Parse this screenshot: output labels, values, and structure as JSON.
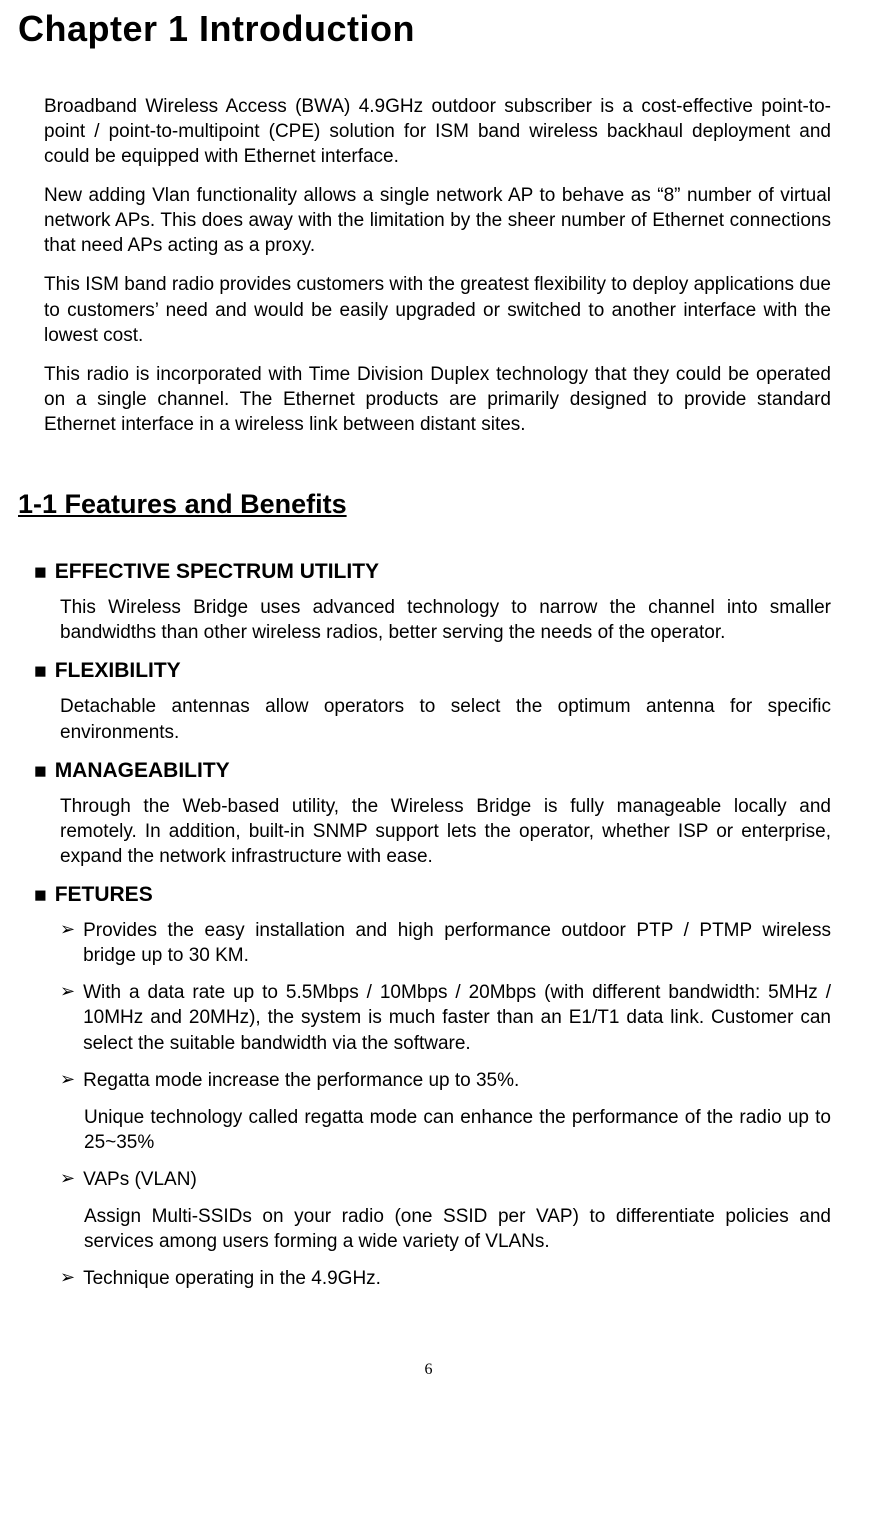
{
  "colors": {
    "text": "#000000",
    "background": "#ffffff"
  },
  "chapter_title": "Chapter 1    Introduction",
  "intro_paragraphs": [
    "Broadband Wireless Access (BWA) 4.9GHz outdoor subscriber is a cost-effective point-to-point / point-to-multipoint (CPE) solution for ISM band wireless backhaul deployment and could be equipped with Ethernet interface.",
    "New adding Vlan functionality allows a single network AP to behave as “8” number of virtual network APs. This does away with the limitation by the sheer number of Ethernet connections that need APs acting as a proxy.",
    "This ISM band radio provides customers with the greatest flexibility to deploy applications due to customers’ need and would be easily upgraded or switched to another interface with the lowest cost.",
    "This radio is incorporated with Time Division Duplex technology that they could be operated on a single channel. The Ethernet products are primarily designed to provide standard Ethernet interface in a wireless link between distant sites."
  ],
  "section_header": "1-1 Features and Benefits",
  "features": [
    {
      "title": "EFFECTIVE SPECTRUM UTILITY",
      "body": "This Wireless Bridge uses advanced technology to narrow the channel into smaller bandwidths than other wireless radios, better serving the needs of the operator."
    },
    {
      "title": "FLEXIBILITY",
      "body": "Detachable antennas allow operators to select the optimum antenna for specific environments."
    },
    {
      "title": "MANAGEABILITY",
      "body": "Through the Web-based utility, the Wireless Bridge is fully manageable locally and remotely. In addition, built-in SNMP support lets the operator, whether ISP or enterprise, expand the network infrastructure with ease."
    },
    {
      "title": "FETURES",
      "items": [
        {
          "text": "Provides the easy installation and high performance outdoor PTP / PTMP wireless bridge up to 30 KM."
        },
        {
          "text": "With a data rate up to 5.5Mbps / 10Mbps / 20Mbps (with different bandwidth: 5MHz / 10MHz and 20MHz), the system is much faster than an E1/T1 data link. Customer can select the suitable bandwidth via the software."
        },
        {
          "text": "Regatta mode increase the performance up to 35%.",
          "sub": "Unique technology called regatta mode can enhance the performance of the radio up to 25~35%"
        },
        {
          "text": "VAPs (VLAN)",
          "sub": "Assign Multi-SSIDs on your radio (one SSID per VAP) to differentiate policies and services among users forming a wide variety of VLANs."
        },
        {
          "text": "Technique operating in the 4.9GHz."
        }
      ]
    }
  ],
  "bullets": {
    "square": "■",
    "arrow": "➢"
  },
  "page_number": "6",
  "typography": {
    "chapter_fontsize": 36,
    "body_fontsize": 19,
    "section_header_fontsize": 27,
    "feature_head_fontsize": 21,
    "page_number_fontsize": 16,
    "font_family_body": "Arial",
    "font_family_title": "Arial Black"
  }
}
